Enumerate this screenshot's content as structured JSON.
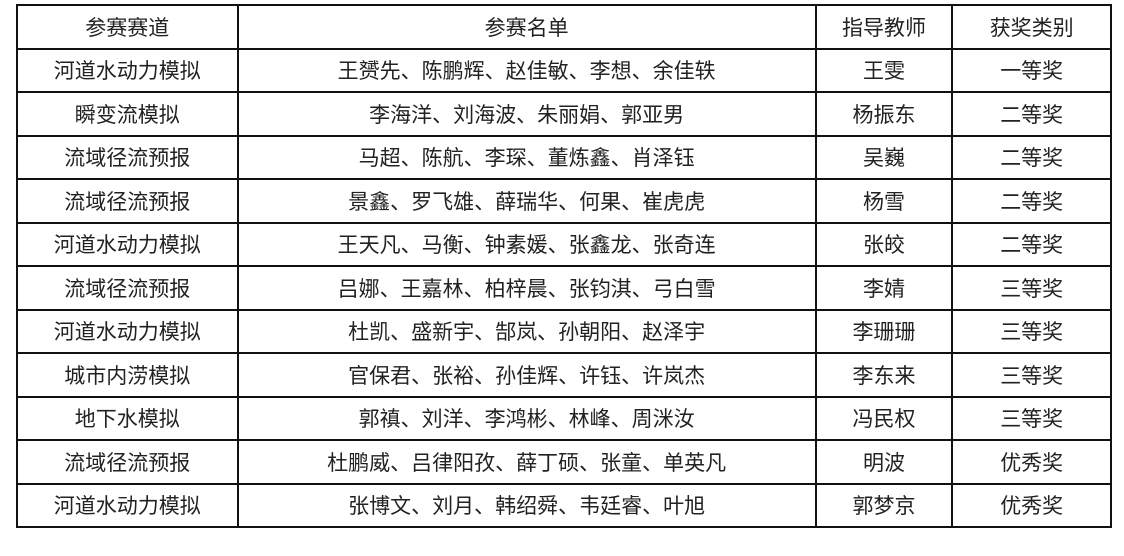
{
  "headers": [
    "参赛赛道",
    "参赛名单",
    "指导教师",
    "获奖类别"
  ],
  "rows": [
    [
      "河道水动力模拟",
      "王赟先、陈鹏辉、赵佳敏、李想、余佳轶",
      "王雯",
      "一等奖"
    ],
    [
      "瞬变流模拟",
      "李海洋、刘海波、朱丽娟、郭亚男",
      "杨振东",
      "二等奖"
    ],
    [
      "流域径流预报",
      "马超、陈航、李琛、董炼鑫、肖泽钰",
      "吴巍",
      "二等奖"
    ],
    [
      "流域径流预报",
      "景鑫、罗飞雄、薛瑞华、何果、崔虎虎",
      "杨雪",
      "二等奖"
    ],
    [
      "河道水动力模拟",
      "王天凡、马衡、钟素媛、张鑫龙、张奇连",
      "张皎",
      "二等奖"
    ],
    [
      "流域径流预报",
      "吕娜、王嘉林、柏梓晨、张钧淇、弓白雪",
      "李婧",
      "三等奖"
    ],
    [
      "河道水动力模拟",
      "杜凯、盛新宇、郜岚、孙朝阳、赵泽宇",
      "李珊珊",
      "三等奖"
    ],
    [
      "城市内涝模拟",
      "官保君、张裕、孙佳辉、许钰、许岚杰",
      "李东来",
      "三等奖"
    ],
    [
      "地下水模拟",
      "郭禛、刘洋、李鸿彬、林峰、周洣汝",
      "冯民权",
      "三等奖"
    ],
    [
      "流域径流预报",
      "杜鹏威、吕律阳孜、薛丁硕、张童、单英凡",
      "明波",
      "优秀奖"
    ],
    [
      "河道水动力模拟",
      "张博文、刘月、韩绍舜、韦廷睿、叶旭",
      "郭梦京",
      "优秀奖"
    ]
  ]
}
